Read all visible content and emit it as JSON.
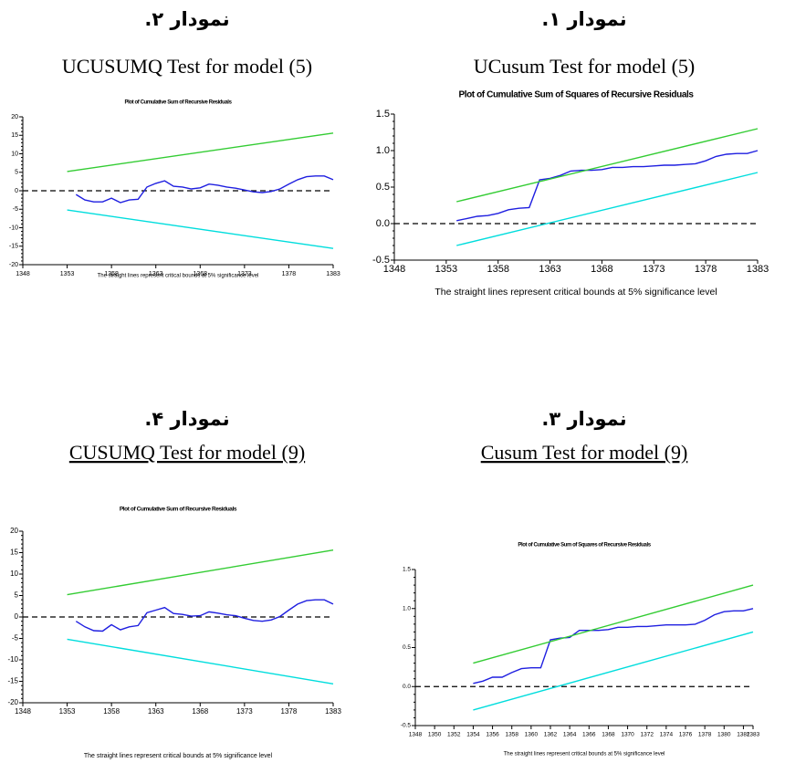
{
  "chart_data": [
    {
      "type": "line",
      "heading": "نمودار ۱.",
      "caption": "UCusum Test  for model (5)",
      "title": "Plot of Cumulative Sum of Squares of Recursive Residuals",
      "note": "The straight lines represent critical bounds at 5% significance level",
      "xlim": [
        1348,
        1383
      ],
      "xticks": [
        1348,
        1353,
        1358,
        1363,
        1368,
        1373,
        1378,
        1383
      ],
      "ylim": [
        -0.5,
        1.5
      ],
      "yticks": [
        {
          "value": -0.5,
          "label": "-0.5"
        },
        {
          "value": 0,
          "label": "0.0"
        },
        {
          "value": 0.5,
          "label": "0.5"
        },
        {
          "value": 1,
          "label": "1.0"
        },
        {
          "value": 1.5,
          "label": "1.5"
        }
      ],
      "reference_line": 0,
      "series": [
        {
          "color": "#1f1fe0",
          "x": [
            1354,
            1355,
            1356,
            1357,
            1358,
            1359,
            1360,
            1361,
            1362,
            1363,
            1364,
            1365,
            1366,
            1367,
            1368,
            1369,
            1370,
            1371,
            1372,
            1373,
            1374,
            1375,
            1376,
            1377,
            1378,
            1379,
            1380,
            1381,
            1382,
            1383
          ],
          "values": [
            0.04,
            0.07,
            0.1,
            0.11,
            0.14,
            0.19,
            0.21,
            0.22,
            0.6,
            0.62,
            0.66,
            0.72,
            0.73,
            0.73,
            0.74,
            0.77,
            0.77,
            0.78,
            0.78,
            0.79,
            0.8,
            0.8,
            0.81,
            0.82,
            0.86,
            0.92,
            0.95,
            0.96,
            0.96,
            1.0
          ]
        },
        {
          "color": "#33cc33",
          "x": [
            1354,
            1383
          ],
          "values": [
            0.3,
            1.3
          ]
        },
        {
          "color": "#00dddd",
          "x": [
            1354,
            1383
          ],
          "values": [
            -0.3,
            0.7
          ]
        }
      ]
    },
    {
      "type": "line",
      "heading": "نمودار ۲.",
      "caption": "UCUSUMQ Test  for model (5)",
      "title": "Plot of Cumulative Sum of Recursive Residuals",
      "note": "The straight lines represent critical bounds at 5% significance level",
      "xlim": [
        1348,
        1383
      ],
      "xticks": [
        1348,
        1353,
        1358,
        1363,
        1368,
        1373,
        1378,
        1383
      ],
      "ylim": [
        -20,
        20
      ],
      "yticks": [
        -20,
        -15,
        -10,
        -5,
        0,
        5,
        10,
        15,
        20
      ],
      "reference_line": 0,
      "series": [
        {
          "color": "#1f1fe0",
          "x": [
            1354,
            1355,
            1356,
            1357,
            1358,
            1359,
            1360,
            1361,
            1362,
            1363,
            1364,
            1365,
            1366,
            1367,
            1368,
            1369,
            1370,
            1371,
            1372,
            1373,
            1374,
            1375,
            1376,
            1377,
            1378,
            1379,
            1380,
            1381,
            1382,
            1383
          ],
          "values": [
            -1,
            -2.5,
            -3,
            -3,
            -2,
            -3.2,
            -2.5,
            -2.3,
            1,
            2,
            2.7,
            1.2,
            1,
            0.5,
            0.8,
            1.8,
            1.5,
            1,
            0.7,
            0.2,
            -0.3,
            -0.5,
            -0.2,
            0.5,
            1.8,
            3,
            3.8,
            4,
            4,
            3
          ]
        },
        {
          "color": "#33cc33",
          "x": [
            1353,
            1383
          ],
          "values": [
            5.2,
            15.6
          ]
        },
        {
          "color": "#00dddd",
          "x": [
            1353,
            1383
          ],
          "values": [
            -5.2,
            -15.6
          ]
        }
      ]
    },
    {
      "type": "line",
      "heading": "نمودار ۳.",
      "caption": "Cusum Test  for model (9)",
      "title": "Plot of Cumulative Sum of Squares of Recursive Residuals",
      "note": "The straight lines represent critical bounds at 5% significance level",
      "xlim": [
        1348,
        1383
      ],
      "xticks": [
        1348,
        1350,
        1352,
        1354,
        1356,
        1358,
        1360,
        1362,
        1364,
        1366,
        1368,
        1370,
        1372,
        1374,
        1376,
        1378,
        1380,
        1382,
        1383
      ],
      "ylim": [
        -0.5,
        1.5
      ],
      "yticks": [
        {
          "value": -0.5,
          "label": "-0.5"
        },
        {
          "value": 0,
          "label": "0.0"
        },
        {
          "value": 0.5,
          "label": "0.5"
        },
        {
          "value": 1,
          "label": "1.0"
        },
        {
          "value": 1.5,
          "label": "1.5"
        }
      ],
      "reference_line": 0,
      "series": [
        {
          "color": "#1f1fe0",
          "x": [
            1354,
            1355,
            1356,
            1357,
            1358,
            1359,
            1360,
            1361,
            1362,
            1363,
            1364,
            1365,
            1366,
            1367,
            1368,
            1369,
            1370,
            1371,
            1372,
            1373,
            1374,
            1375,
            1376,
            1377,
            1378,
            1379,
            1380,
            1381,
            1382,
            1383
          ],
          "values": [
            0.04,
            0.07,
            0.12,
            0.12,
            0.18,
            0.23,
            0.24,
            0.24,
            0.6,
            0.62,
            0.63,
            0.72,
            0.72,
            0.72,
            0.73,
            0.76,
            0.76,
            0.77,
            0.77,
            0.78,
            0.79,
            0.79,
            0.79,
            0.8,
            0.85,
            0.92,
            0.96,
            0.97,
            0.97,
            1.0
          ]
        },
        {
          "color": "#33cc33",
          "x": [
            1354,
            1383
          ],
          "values": [
            0.3,
            1.3
          ]
        },
        {
          "color": "#00dddd",
          "x": [
            1354,
            1383
          ],
          "values": [
            -0.3,
            0.7
          ]
        }
      ]
    },
    {
      "type": "line",
      "heading": "نمودار ۴.",
      "caption": "CUSUMQ Test  for model (9)",
      "title": "Plot of Cumulative Sum of Recursive Residuals",
      "note": "The straight lines represent critical bounds at 5% significance level",
      "xlim": [
        1348,
        1383
      ],
      "xticks": [
        1348,
        1353,
        1358,
        1363,
        1368,
        1373,
        1378,
        1383
      ],
      "ylim": [
        -20,
        20
      ],
      "yticks": [
        -20,
        -15,
        -10,
        -5,
        0,
        5,
        10,
        15,
        20
      ],
      "reference_line": 0,
      "series": [
        {
          "color": "#1f1fe0",
          "x": [
            1354,
            1355,
            1356,
            1357,
            1358,
            1359,
            1360,
            1361,
            1362,
            1363,
            1364,
            1365,
            1366,
            1367,
            1368,
            1369,
            1370,
            1371,
            1372,
            1373,
            1374,
            1375,
            1376,
            1377,
            1378,
            1379,
            1380,
            1381,
            1382,
            1383
          ],
          "values": [
            -1,
            -2.3,
            -3.2,
            -3.3,
            -1.8,
            -3,
            -2.3,
            -2,
            1,
            1.6,
            2.2,
            0.8,
            0.6,
            0.2,
            0.3,
            1.2,
            0.9,
            0.5,
            0.3,
            -0.3,
            -0.8,
            -1,
            -0.7,
            0.1,
            1.6,
            3,
            3.8,
            4,
            4,
            3
          ]
        },
        {
          "color": "#33cc33",
          "x": [
            1353,
            1383
          ],
          "values": [
            5.2,
            15.6
          ]
        },
        {
          "color": "#00dddd",
          "x": [
            1353,
            1383
          ],
          "values": [
            -5.2,
            -15.6
          ]
        }
      ]
    }
  ]
}
